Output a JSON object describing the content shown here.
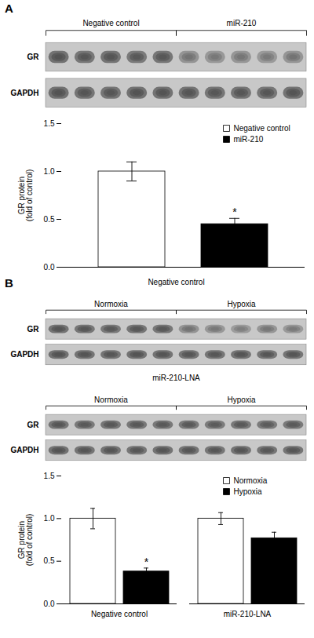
{
  "chart_data": [
    {
      "type": "heatmap",
      "panel": "A",
      "categories": [
        null,
        null,
        null,
        null,
        null,
        null,
        null,
        null,
        null,
        null
      ],
      "rows": [
        "GR",
        "GAPDH"
      ],
      "cells": [
        [
          0.9,
          0.85,
          0.88,
          0.82,
          0.86,
          0.55,
          0.5,
          0.52,
          0.48,
          0.53
        ],
        [
          0.9,
          0.88,
          0.87,
          0.9,
          0.89,
          0.88,
          0.86,
          0.87,
          0.85,
          0.88
        ]
      ],
      "color": "#404040",
      "annotations": [
        {
          "text": "Negative control",
          "lanes": [
            0,
            5
          ]
        },
        {
          "text": "miR-210",
          "lanes": [
            5,
            10
          ]
        }
      ]
    },
    {
      "type": "bar",
      "categories": [
        "Negative control",
        "miR-210"
      ],
      "values": [
        1.0,
        0.45
      ],
      "errors": [
        0.1,
        0.06
      ],
      "colors": [
        "white",
        "black"
      ],
      "ylabel": "GR protein\n(fold of control)",
      "ylim": [
        0.0,
        1.5
      ],
      "yticks": [
        {
          "value": 0,
          "label": "0.0"
        },
        0.5,
        {
          "value": 1,
          "label": "1.0"
        },
        1.5
      ],
      "tick_labels": "y",
      "legend": "upper right",
      "annotations": [
        {
          "text": "*",
          "category": "miR-210"
        }
      ]
    },
    {
      "type": "heatmap",
      "panel": "B",
      "title": "Negative control",
      "categories": [
        null,
        null,
        null,
        null,
        null,
        null,
        null,
        null,
        null,
        null
      ],
      "rows": [
        "GR",
        "GAPDH"
      ],
      "cells": [
        [
          0.88,
          0.85,
          0.82,
          0.86,
          0.84,
          0.55,
          0.5,
          0.45,
          0.52,
          0.48
        ],
        [
          0.9,
          0.88,
          0.87,
          0.89,
          0.88,
          0.87,
          0.86,
          0.88,
          0.85,
          0.87
        ]
      ],
      "color": "#404040",
      "annotations": [
        {
          "text": "Normoxia",
          "lanes": [
            0,
            5
          ]
        },
        {
          "text": "Hypoxia",
          "lanes": [
            5,
            10
          ]
        }
      ]
    },
    {
      "type": "heatmap",
      "title": "miR-210-LNA",
      "categories": [
        null,
        null,
        null,
        null,
        null,
        null,
        null,
        null,
        null,
        null
      ],
      "rows": [
        "GR",
        "GAPDH"
      ],
      "cells": [
        [
          0.85,
          0.82,
          0.86,
          0.84,
          0.83,
          0.82,
          0.8,
          0.83,
          0.79,
          0.81
        ],
        [
          0.89,
          0.87,
          0.88,
          0.86,
          0.88,
          0.87,
          0.85,
          0.88,
          0.86,
          0.87
        ]
      ],
      "color": "#404040",
      "annotations": [
        {
          "text": "Normoxia",
          "lanes": [
            0,
            5
          ]
        },
        {
          "text": "Hypoxia",
          "lanes": [
            5,
            10
          ]
        }
      ]
    },
    {
      "type": "bar",
      "categories": [
        "Negative control",
        "miR-210-LNA"
      ],
      "series": [
        {
          "name": "Normoxia",
          "color": "white",
          "values": [
            1.0,
            1.0
          ],
          "errors": [
            0.12,
            0.07
          ]
        },
        {
          "name": "Hypoxia",
          "color": "black",
          "values": [
            0.38,
            0.77
          ],
          "errors": [
            0.04,
            0.07
          ]
        }
      ],
      "ylabel": "GR protein\n(fold of control)",
      "ylim": [
        0.0,
        1.5
      ],
      "yticks": [
        {
          "value": 0,
          "label": "0.0"
        },
        0.5,
        {
          "value": 1,
          "label": "1.0"
        },
        1.5
      ],
      "legend": "upper right",
      "annotations": [
        {
          "text": "*",
          "category": "Negative control",
          "series": "Hypoxia"
        }
      ]
    }
  ]
}
